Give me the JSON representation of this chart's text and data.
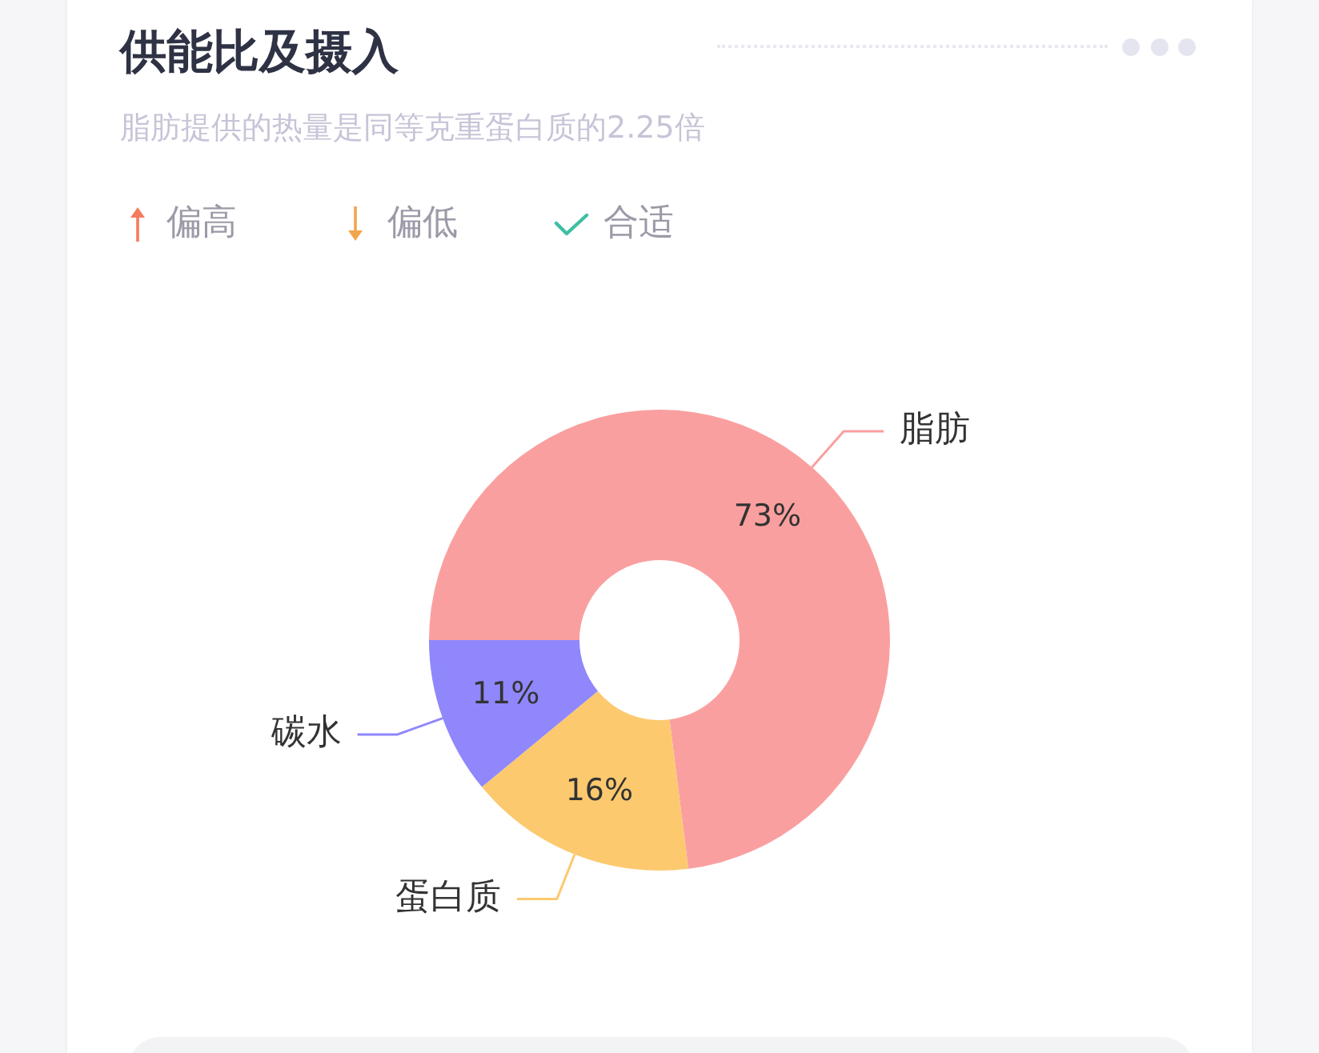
{
  "chart_data": {
    "type": "donut",
    "title": "供能比及摄入",
    "subtitle": "脂肪提供的热量是同等克重蛋白质的2.25倍",
    "annotations": [
      "偏高",
      "偏低",
      "合适"
    ],
    "categories": [
      "脂肪",
      "蛋白质",
      "碳水"
    ],
    "values": [
      73,
      16,
      11
    ],
    "colors": [
      "#fa9f9f",
      "#fcc96f",
      "#8f87fb"
    ],
    "value_labels": [
      "73%",
      "16%",
      "11%"
    ]
  }
}
